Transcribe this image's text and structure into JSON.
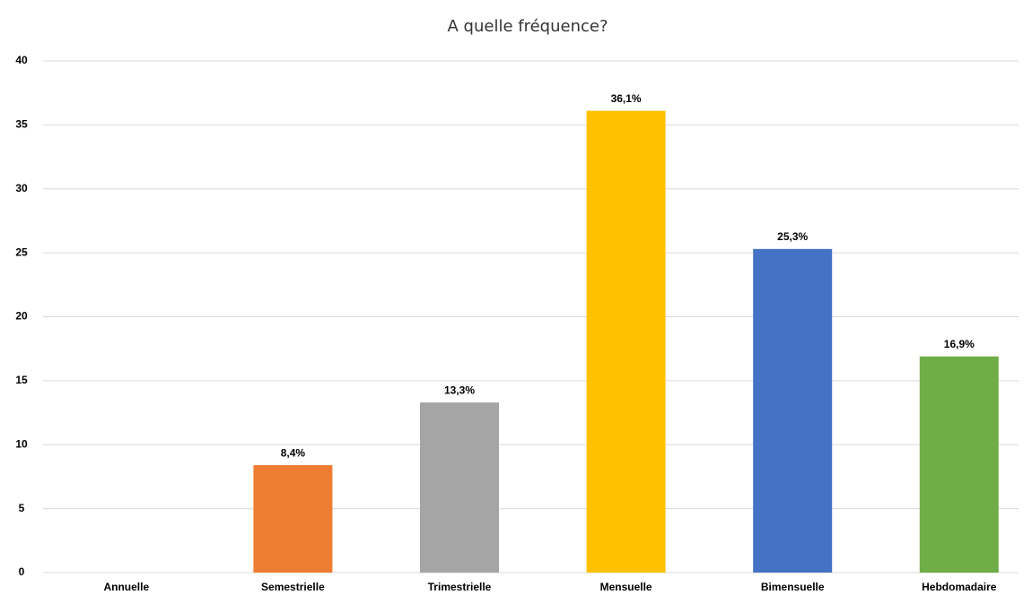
{
  "chart_data": {
    "type": "bar",
    "title": "A quelle fréquence?",
    "categories": [
      "Annuelle",
      "Semestrielle",
      "Trimestrielle",
      "Mensuelle",
      "Bimensuelle",
      "Hebdomadaire"
    ],
    "values": [
      0,
      8.4,
      13.3,
      36.1,
      25.3,
      16.9
    ],
    "value_labels": [
      null,
      "8,4%",
      "13,3%",
      "36,1%",
      "25,3%",
      "16,9%"
    ],
    "colors": [
      "#5b9bd5",
      "#ed7d31",
      "#a5a5a5",
      "#ffc000",
      "#4472c4",
      "#70ad47"
    ],
    "ylim": [
      0,
      40
    ],
    "yticks": [
      0,
      5,
      10,
      15,
      20,
      25,
      30,
      35,
      40
    ],
    "grid": true
  }
}
